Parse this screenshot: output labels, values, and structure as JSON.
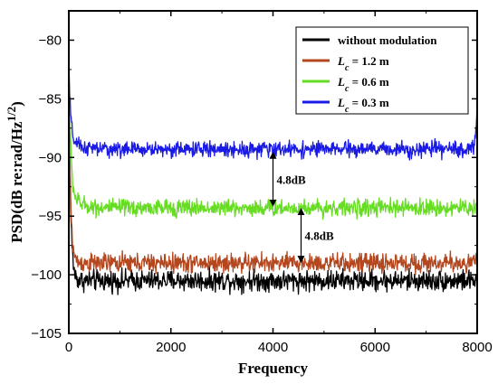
{
  "chart_data": {
    "type": "line",
    "title": "",
    "xlabel": "Frequency",
    "ylabel": "PSD(dB re:rad/Hz",
    "ylabel_sup": "1/2",
    "ylabel_end": ")",
    "xlim": [
      0,
      8000
    ],
    "ylim": [
      -105,
      -77.5
    ],
    "xticks": [
      0,
      2000,
      4000,
      6000,
      8000
    ],
    "xtick_labels": [
      "0",
      "2000",
      "4000",
      "6000",
      "8000"
    ],
    "yticks": [
      -105,
      -100,
      -95,
      -90,
      -85,
      -80
    ],
    "ytick_labels": [
      "−105",
      "−100",
      "−95",
      "−90",
      "−85",
      "−80"
    ],
    "grid": false,
    "legend_position": "top-right",
    "series": [
      {
        "name_prefix": "without modulation",
        "name_sub": "",
        "name_suffix": "",
        "color": "#000000",
        "baseline": -100.5,
        "noise": 0.55,
        "start_peak": -82.5,
        "decay_to": -100.5,
        "end_rise": 0
      },
      {
        "name_prefix": "L",
        "name_sub": "c",
        "name_suffix": " = 1.2 m",
        "color": "#b5471f",
        "baseline": -99.0,
        "noise": 0.5,
        "start_peak": -83.0,
        "decay_to": -99.0,
        "end_rise": 0.8
      },
      {
        "name_prefix": "L",
        "name_sub": "c",
        "name_suffix": " = 0.6 m",
        "color": "#66dd22",
        "baseline": -94.3,
        "noise": 0.45,
        "start_peak": -80.5,
        "decay_to": -93.0,
        "end_rise": 0.5
      },
      {
        "name_prefix": "L",
        "name_sub": "c",
        "name_suffix": " = 0.3 m",
        "color": "#1a1ae6",
        "baseline": -89.3,
        "noise": 0.4,
        "start_peak": -82.0,
        "decay_to": -88.5,
        "end_rise": 4.5
      }
    ],
    "annotations": [
      {
        "text": "4.8dB",
        "x": 4000,
        "y_from": -89.5,
        "y_to": -94.2
      },
      {
        "text": "4.8dB",
        "x": 4550,
        "y_from": -94.3,
        "y_to": -99.0
      }
    ]
  }
}
